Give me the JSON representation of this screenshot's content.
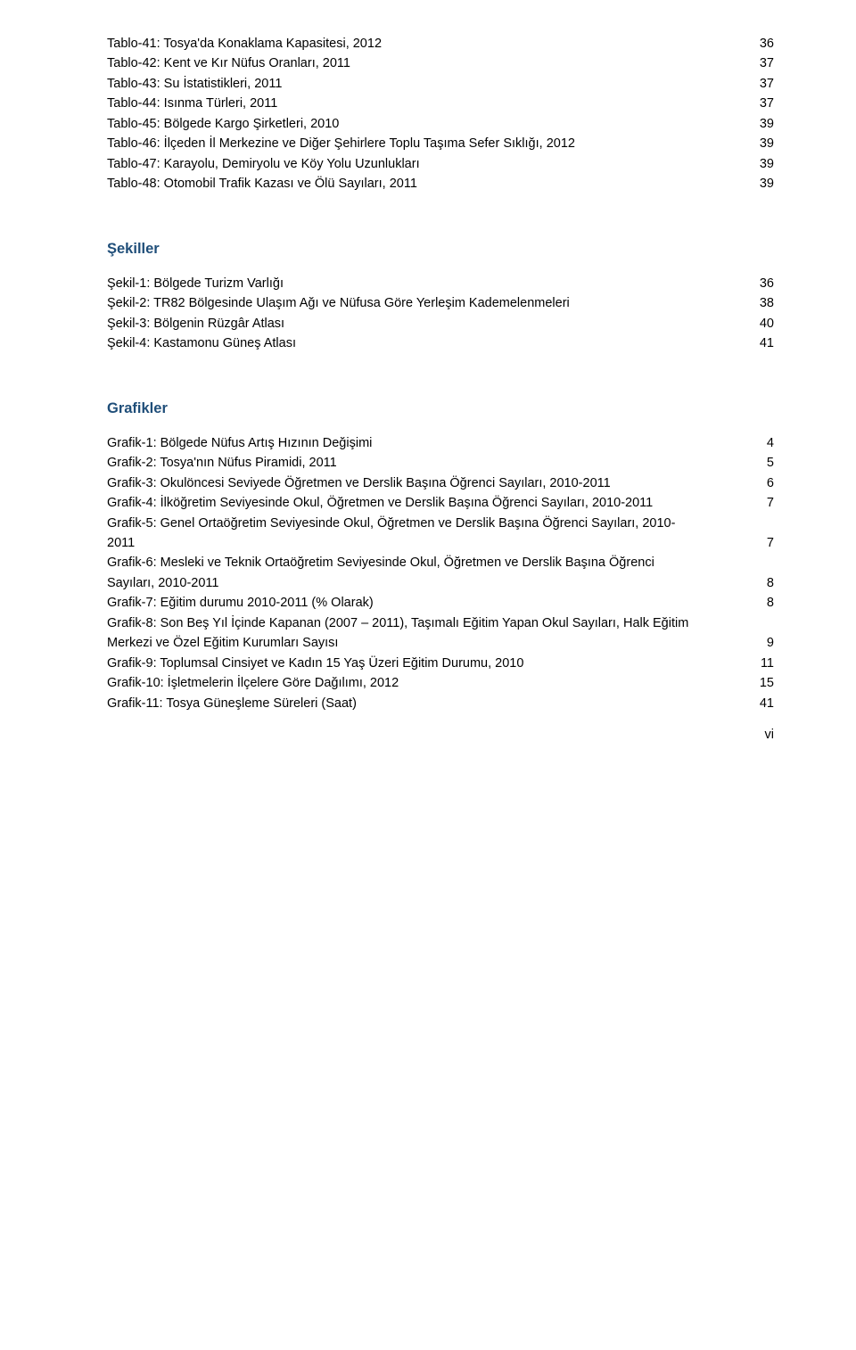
{
  "heading_color": "#1f4e79",
  "tablolar": [
    {
      "label": "Tablo-41: Tosya'da Konaklama Kapasitesi, 2012",
      "page": "36"
    },
    {
      "label": "Tablo-42: Kent ve Kır Nüfus Oranları, 2011",
      "page": "37"
    },
    {
      "label": "Tablo-43: Su İstatistikleri, 2011",
      "page": "37"
    },
    {
      "label": "Tablo-44: Isınma Türleri, 2011",
      "page": "37"
    },
    {
      "label": "Tablo-45: Bölgede Kargo Şirketleri, 2010",
      "page": "39"
    },
    {
      "label": "Tablo-46: İlçeden İl Merkezine ve Diğer Şehirlere Toplu Taşıma Sefer Sıklığı, 2012",
      "page": "39"
    },
    {
      "label": "Tablo-47: Karayolu, Demiryolu ve Köy Yolu Uzunlukları",
      "page": "39"
    },
    {
      "label": "Tablo-48: Otomobil Trafik Kazası ve Ölü Sayıları, 2011",
      "page": "39"
    }
  ],
  "sekiller_heading": "Şekiller",
  "sekiller": [
    {
      "label": "Şekil-1: Bölgede Turizm Varlığı",
      "page": "36"
    },
    {
      "label": "Şekil-2: TR82 Bölgesinde Ulaşım Ağı ve Nüfusa Göre Yerleşim Kademelenmeleri",
      "page": "38"
    },
    {
      "label": "Şekil-3: Bölgenin Rüzgâr Atlası",
      "page": "40"
    },
    {
      "label": "Şekil-4: Kastamonu Güneş Atlası",
      "page": "41"
    }
  ],
  "grafikler_heading": "Grafikler",
  "grafikler": [
    {
      "label": "Grafik-1: Bölgede Nüfus Artış Hızının Değişimi",
      "page": "4"
    },
    {
      "label": "Grafik-2: Tosya'nın Nüfus Piramidi, 2011",
      "page": "5"
    },
    {
      "label": "Grafik-3: Okulöncesi Seviyede Öğretmen ve Derslik Başına Öğrenci Sayıları,  2010-2011",
      "page": "6"
    },
    {
      "label": "Grafik-4: İlköğretim Seviyesinde Okul, Öğretmen ve Derslik Başına Öğrenci Sayıları,  2010-2011",
      "page": "7"
    },
    {
      "pre": "Grafik-5: Genel Ortaöğretim Seviyesinde Okul, Öğretmen ve Derslik Başına Öğrenci Sayıları, 2010-",
      "label": "2011",
      "page": "7"
    },
    {
      "pre": "Grafik-6: Mesleki ve Teknik Ortaöğretim Seviyesinde Okul, Öğretmen ve Derslik Başına Öğrenci",
      "label": "Sayıları,  2010-2011",
      "page": "8"
    },
    {
      "label": "Grafik-7: Eğitim durumu 2010-2011 (% Olarak)",
      "page": "8"
    },
    {
      "pre": "Grafik-8: Son Beş Yıl İçinde Kapanan (2007 – 2011), Taşımalı Eğitim Yapan Okul Sayıları, Halk Eğitim",
      "label": "Merkezi ve Özel Eğitim Kurumları Sayısı",
      "page": "9"
    },
    {
      "label": "Grafik-9: Toplumsal Cinsiyet ve Kadın 15 Yaş Üzeri Eğitim Durumu, 2010",
      "page": "11"
    },
    {
      "label": "Grafik-10: İşletmelerin İlçelere Göre Dağılımı, 2012",
      "page": "15"
    },
    {
      "label": "Grafik-11: Tosya Güneşleme Süreleri (Saat)",
      "page": "41"
    }
  ],
  "page_footer": "vi"
}
